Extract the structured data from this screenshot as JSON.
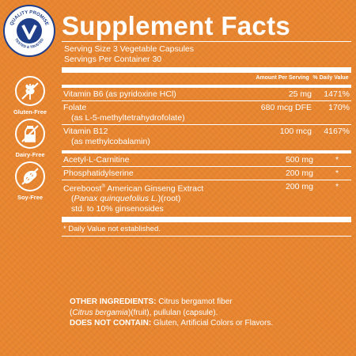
{
  "badges": {
    "quality": "QUALITY PROMISE",
    "tested": "TESTED & TRUSTED",
    "items": [
      {
        "label": "Gluten-Free",
        "icon": "wheat-icon"
      },
      {
        "label": "Dairy-Free",
        "icon": "milk-bottle-icon"
      },
      {
        "label": "Soy-Free",
        "icon": "soybean-icon"
      }
    ]
  },
  "colors": {
    "background": "#e8852f",
    "badge_blue": "#1f3f8a",
    "text": "#ffffff"
  },
  "facts": {
    "title": "Supplement Facts",
    "serving_size": "Serving Size 3 Vegetable Capsules",
    "servings_per_container": "Servings Per Container 30",
    "header": {
      "amount": "Amount Per Serving",
      "dv": "% Daily Value"
    },
    "rows": [
      {
        "name": "Vitamin B6 (as pyridoxine HCl)",
        "amount": "25 mg",
        "dv": "1471%"
      },
      {
        "name": "Folate",
        "sub": "(as L-5-methyltetrahydrofolate)",
        "amount": "680 mcg DFE",
        "dv": "170%"
      },
      {
        "name": "Vitamin B12",
        "sub": "(as methylcobalamin)",
        "amount": "100 mcg",
        "dv": "4167%"
      },
      {
        "name": "Acetyl-L-Carnitine",
        "amount": "500 mg",
        "dv": "*"
      },
      {
        "name": "Phosphatidylserine",
        "amount": "200 mg",
        "dv": "*"
      },
      {
        "name": "Cereboost",
        "reg": "®",
        "name_rest": " American Ginseng Extract",
        "sub_italic": "Panax quinquefolius L.",
        "sub_after": ")(root)",
        "sub_before": "(",
        "sub2": "std. to 10% ginsenosides",
        "amount": "200 mg",
        "dv": "*"
      }
    ],
    "footnote": "* Daily Value not established."
  },
  "other": {
    "ingredients_label": "OTHER INGREDIENTS:",
    "ingredients_a": " Citrus bergamot fiber",
    "ingredients_b_open": "(",
    "ingredients_b_italic": "Citrus bergamia",
    "ingredients_b_rest": ")(fruit), pullulan (capsule).",
    "not_contain_label": "DOES NOT CONTAIN:",
    "not_contain_text": " Gluten, Artificial Colors or Flavors."
  }
}
